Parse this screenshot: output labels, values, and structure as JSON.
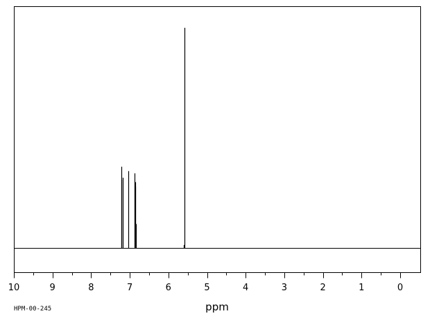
{
  "chart_data": {
    "type": "line",
    "title": "",
    "xlabel": "ppm",
    "ylabel": "",
    "spectrum_id": "HPM-00-245",
    "x_axis": {
      "reversed": true,
      "range": [
        10.5,
        -0.5
      ],
      "major_ticks": [
        10,
        9,
        8,
        7,
        6,
        5,
        4,
        3,
        2,
        1,
        0
      ],
      "tick_labels": [
        "10",
        "9",
        "8",
        "7",
        "6",
        "5",
        "4",
        "3",
        "2",
        "1",
        "0"
      ],
      "minor_step": 0.5
    },
    "y_axis": {
      "range": [
        0,
        1.0
      ],
      "baseline": 0
    },
    "grid": false,
    "legend": "none",
    "series": [
      {
        "peaks": [
          {
            "ppm": 7.22,
            "intensity": 0.31
          },
          {
            "ppm": 7.21,
            "intensity": 0.37
          },
          {
            "ppm": 7.19,
            "intensity": 0.32
          },
          {
            "ppm": 7.04,
            "intensity": 0.35
          },
          {
            "ppm": 6.88,
            "intensity": 0.34
          },
          {
            "ppm": 6.86,
            "intensity": 0.3
          },
          {
            "ppm": 6.85,
            "intensity": 0.28
          },
          {
            "ppm": 6.84,
            "intensity": 0.11
          },
          {
            "ppm": 5.59,
            "intensity": 1.0
          },
          {
            "ppm": 5.61,
            "intensity": 0.015
          }
        ]
      }
    ],
    "colors": {
      "line": "#000000",
      "background": "#ffffff"
    }
  }
}
